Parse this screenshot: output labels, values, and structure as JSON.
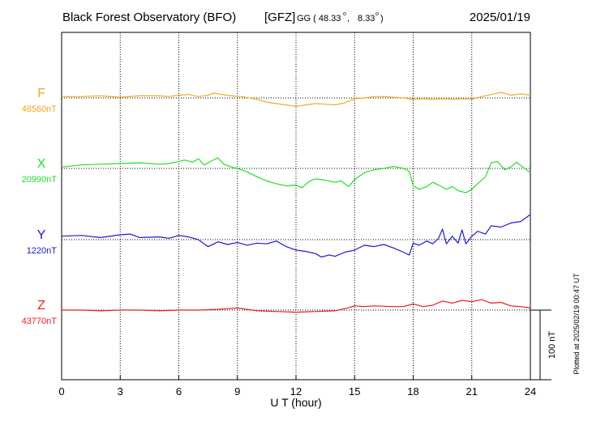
{
  "header": {
    "title": "Black Forest Observatory (BFO)",
    "network": "[GFZ]",
    "coord_prefix": "GG ( 48.33",
    "coord_sep": ",",
    "coord_lon": "8.33",
    "coord_suffix": ")",
    "degree_mark": "o",
    "date": "2025/01/19"
  },
  "plotted_note": "Plotted at 2025/02/19 00:47 UT",
  "scale_bar_label": "100 nT",
  "chart_data": {
    "type": "line",
    "xlabel": "U T (hour)",
    "xlim": [
      0,
      24
    ],
    "xticks": [
      0,
      3,
      6,
      9,
      12,
      15,
      18,
      21,
      24
    ],
    "scale_nT_per_division": 100,
    "grid": "dotted",
    "series": [
      {
        "name": "F",
        "baseline_label": "48560nT",
        "baseline_nT": 48560,
        "color": "#f5a81c",
        "x": [
          0,
          1,
          2,
          3,
          4,
          5,
          5.5,
          6,
          6.5,
          7,
          7.5,
          7.8,
          8.2,
          8.7,
          9.2,
          10,
          10.5,
          11,
          11.5,
          12,
          12.5,
          13,
          13.5,
          14,
          14.5,
          15,
          15.5,
          16,
          16.5,
          17,
          17.5,
          18,
          18.5,
          19,
          19.5,
          20,
          20.5,
          21,
          21.5,
          22,
          22.5,
          23,
          23.5,
          24
        ],
        "y": [
          2,
          2,
          3,
          1,
          3,
          3,
          2,
          4,
          5,
          2,
          4,
          7,
          5,
          3,
          2,
          -2,
          -6,
          -8,
          -10,
          -12,
          -10,
          -8,
          -9,
          -10,
          -7,
          -1,
          0,
          2,
          2,
          1,
          0,
          -2,
          -1,
          -2,
          -1,
          -2,
          -1,
          -2,
          2,
          5,
          8,
          4,
          6,
          4
        ]
      },
      {
        "name": "X",
        "baseline_label": "20990nT",
        "baseline_nT": 20990,
        "color": "#22e022",
        "x": [
          0,
          1,
          2,
          3,
          4,
          5,
          5.5,
          6,
          6.3,
          6.7,
          7,
          7.3,
          7.7,
          8,
          8.3,
          8.7,
          9,
          9.5,
          10,
          10.5,
          11,
          11.5,
          12,
          12.3,
          12.7,
          13,
          13.5,
          14,
          14.3,
          14.7,
          15,
          15.5,
          16,
          16.5,
          17,
          17.5,
          17.8,
          18,
          18.3,
          18.7,
          19,
          19.3,
          19.7,
          20,
          20.3,
          20.7,
          21,
          21.3,
          21.7,
          22,
          22.3,
          22.7,
          23,
          23.3,
          23.7,
          24
        ],
        "y": [
          2,
          5,
          6,
          7,
          8,
          6,
          7,
          10,
          12,
          9,
          14,
          5,
          11,
          15,
          6,
          2,
          0,
          -5,
          -12,
          -18,
          -22,
          -25,
          -24,
          -28,
          -18,
          -15,
          -17,
          -20,
          -18,
          -26,
          -16,
          -6,
          -2,
          0,
          3,
          0,
          -4,
          -25,
          -30,
          -26,
          -20,
          -24,
          -30,
          -26,
          -32,
          -35,
          -30,
          -22,
          -12,
          8,
          10,
          -2,
          2,
          9,
          0,
          -6
        ]
      },
      {
        "name": "Y",
        "baseline_label": "1220nT",
        "baseline_nT": 1220,
        "color": "#1a1ad0",
        "x": [
          0,
          1,
          2,
          3,
          3.5,
          4,
          5,
          5.5,
          6,
          6.5,
          7,
          7.5,
          7.8,
          8,
          8.5,
          9,
          9.5,
          10,
          10.5,
          11,
          11.5,
          12,
          12.5,
          13,
          13.3,
          13.7,
          14,
          14.5,
          15,
          15.5,
          16,
          16.5,
          17,
          17.5,
          17.8,
          18,
          18.3,
          18.7,
          19,
          19.3,
          19.5,
          19.7,
          20,
          20.3,
          20.5,
          20.7,
          21,
          21.3,
          21.7,
          22,
          22.5,
          23,
          23.5,
          24
        ],
        "y": [
          5,
          6,
          3,
          7,
          8,
          3,
          4,
          2,
          6,
          4,
          0,
          -10,
          -6,
          -3,
          -7,
          -4,
          -8,
          -5,
          -6,
          -2,
          -10,
          -15,
          -17,
          -20,
          -25,
          -22,
          -24,
          -18,
          -15,
          -8,
          -10,
          -7,
          -12,
          -18,
          -22,
          -5,
          -8,
          -2,
          -6,
          2,
          15,
          -6,
          5,
          -5,
          14,
          -6,
          5,
          12,
          8,
          20,
          18,
          24,
          26,
          36
        ]
      },
      {
        "name": "Z",
        "baseline_label": "43770nT",
        "baseline_nT": 43770,
        "color": "#ee1c1c",
        "x": [
          0,
          1,
          2,
          3,
          4,
          5,
          6,
          7,
          8,
          8.5,
          9,
          9.5,
          10,
          11,
          12,
          13,
          14,
          14.5,
          15,
          15.5,
          16,
          17,
          17.5,
          18,
          18.5,
          19,
          19.5,
          20,
          20.5,
          21,
          21.5,
          22,
          22.5,
          23,
          23.5,
          24
        ],
        "y": [
          0,
          0,
          -1,
          0,
          0,
          -1,
          0,
          0,
          1,
          2,
          3,
          1,
          -1,
          -2,
          -3,
          -2,
          -1,
          2,
          6,
          5,
          6,
          5,
          5,
          9,
          5,
          7,
          13,
          10,
          14,
          12,
          15,
          10,
          11,
          6,
          5,
          3
        ]
      }
    ]
  }
}
